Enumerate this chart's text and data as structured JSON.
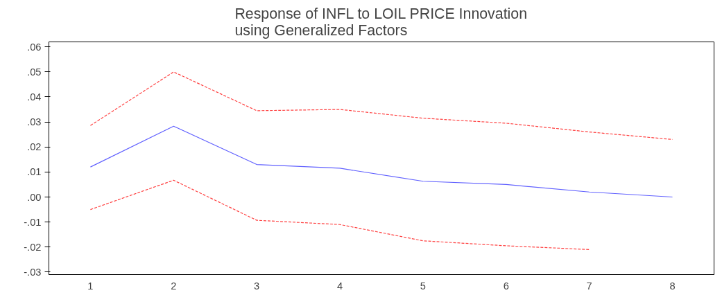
{
  "chart_data": {
    "type": "line",
    "title": "Response of INFL to LOIL PRICE Innovation\nusing Generalized Factors",
    "categories": [
      "1",
      "2",
      "3",
      "4",
      "5",
      "6",
      "7",
      "8"
    ],
    "series": [
      {
        "color": "#ff4040",
        "line_style": "dashed",
        "values": [
          0.0286,
          0.05,
          0.0345,
          0.035,
          0.0315,
          0.0295,
          0.026,
          0.023
        ]
      },
      {
        "color": "#6060ff",
        "line_style": "solid",
        "values": [
          0.012,
          0.0283,
          0.013,
          0.0115,
          0.0063,
          0.005,
          0.002,
          0.0
        ]
      },
      {
        "color": "#ff4040",
        "line_style": "dashed",
        "values": [
          -0.005,
          0.0067,
          -0.0093,
          -0.011,
          -0.0175,
          -0.0195,
          -0.021,
          null
        ]
      }
    ],
    "ylim": [
      -0.031,
      0.062
    ],
    "yticks": [
      {
        "value": 0.06,
        "label": ".06"
      },
      {
        "value": 0.05,
        "label": ".05"
      },
      {
        "value": 0.04,
        "label": ".04"
      },
      {
        "value": 0.03,
        "label": ".03"
      },
      {
        "value": 0.02,
        "label": ".02"
      },
      {
        "value": 0.01,
        "label": ".01"
      },
      {
        "value": 0.0,
        "label": ".00"
      },
      {
        "value": -0.01,
        "label": "-.01"
      },
      {
        "value": -0.02,
        "label": "-.02"
      },
      {
        "value": -0.03,
        "label": "-.03"
      }
    ],
    "grid": false
  }
}
